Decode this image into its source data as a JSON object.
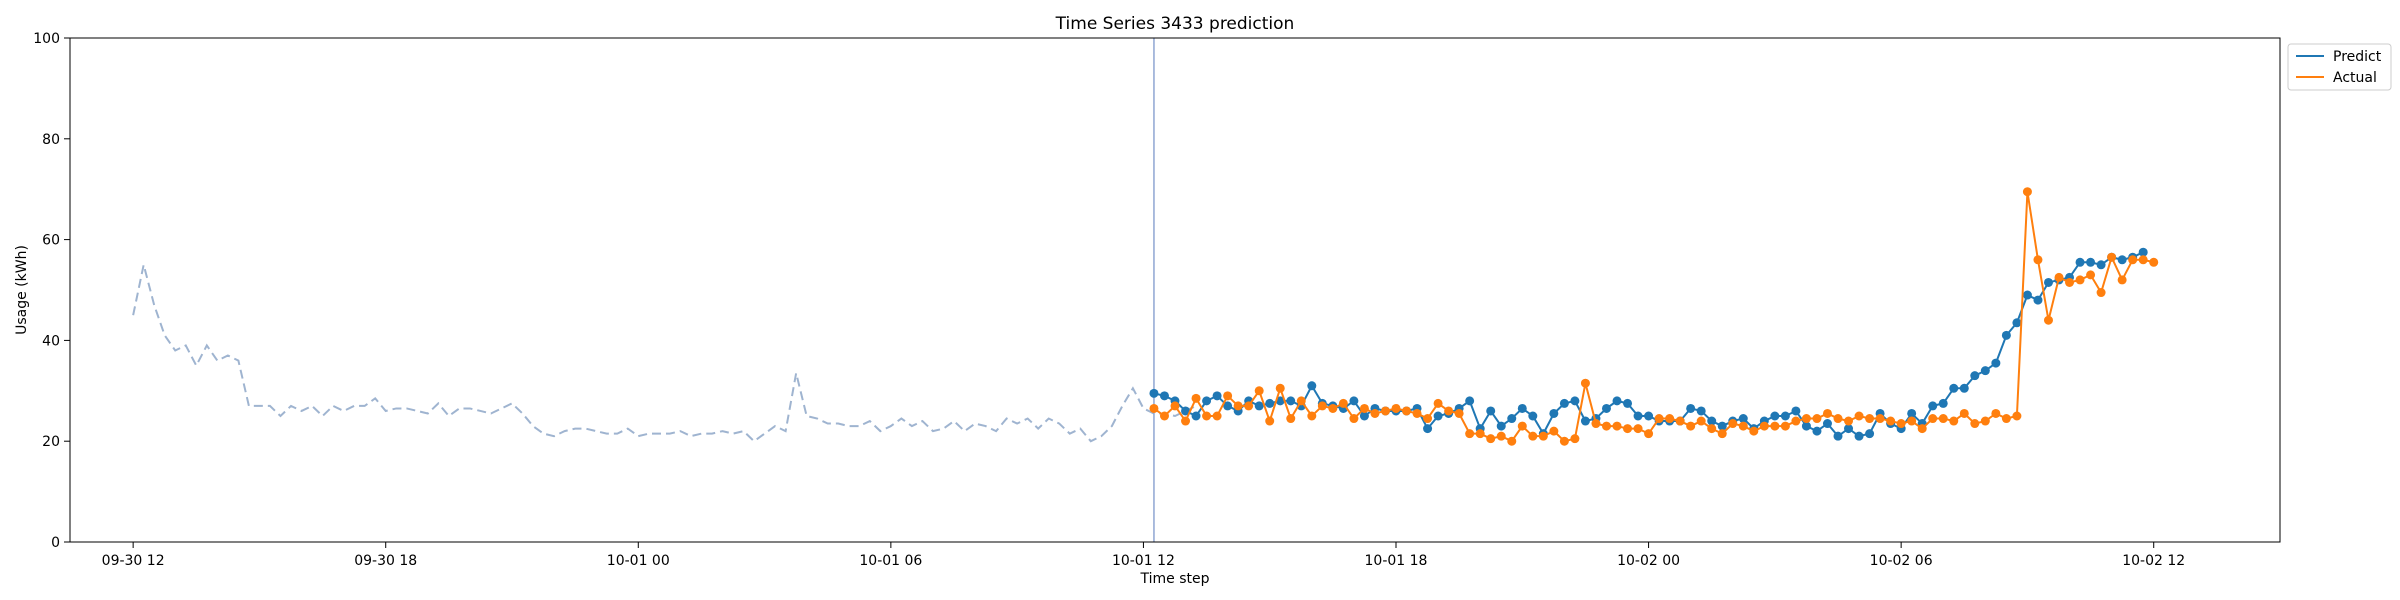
{
  "chart_data": {
    "type": "line",
    "title": "Time Series 3433 prediction",
    "xlabel": "Time step",
    "ylabel": "Usage (kWh)",
    "ylim": [
      0,
      100
    ],
    "yticks": [
      0,
      20,
      40,
      60,
      80,
      100
    ],
    "xlim": [
      "2023-09-30 10:30",
      "2023-10-02 15:00"
    ],
    "xticks": [
      {
        "t": "2023-09-30 12:00",
        "label": "09-30 12"
      },
      {
        "t": "2023-09-30 18:00",
        "label": "09-30 18"
      },
      {
        "t": "2023-10-01 00:00",
        "label": "10-01 00"
      },
      {
        "t": "2023-10-01 06:00",
        "label": "10-01 06"
      },
      {
        "t": "2023-10-01 12:00",
        "label": "10-01 12"
      },
      {
        "t": "2023-10-01 18:00",
        "label": "10-01 18"
      },
      {
        "t": "2023-10-02 00:00",
        "label": "10-02 00"
      },
      {
        "t": "2023-10-02 06:00",
        "label": "10-02 06"
      },
      {
        "t": "2023-10-02 12:00",
        "label": "10-02 12"
      }
    ],
    "grid": false,
    "legend": "top-right",
    "forecast_start": "2023-10-01 12:15",
    "history": {
      "start": "2023-09-30 12:00",
      "step_minutes": 15,
      "style": "dashed",
      "color": "#9fb4d0",
      "values": [
        45,
        55,
        47,
        41,
        38,
        39,
        35,
        39,
        36,
        37,
        36,
        27,
        27,
        27,
        25,
        27,
        26,
        27,
        25,
        27,
        26,
        27,
        27,
        28.5,
        26,
        26.5,
        26.5,
        26,
        25.5,
        27.5,
        25,
        26.5,
        26.5,
        26,
        25.5,
        26.5,
        27.5,
        25.5,
        23,
        21.5,
        21,
        22,
        22.5,
        22.5,
        22,
        21.5,
        21.5,
        22.5,
        21,
        21.5,
        21.5,
        21.5,
        22,
        21,
        21.5,
        21.5,
        22,
        21.5,
        22,
        20,
        21.5,
        23,
        22,
        33.5,
        25,
        24.5,
        23.5,
        23.5,
        23,
        23,
        24,
        22,
        23,
        24.5,
        23,
        24,
        22,
        22.5,
        24,
        22,
        23.5,
        23,
        22,
        24.5,
        23.5,
        24.5,
        22.5,
        24.5,
        23.5,
        21.5,
        22.5,
        20,
        21,
        23,
        27,
        30.5,
        26.5,
        25.5,
        25.5,
        25,
        26,
        27
      ]
    },
    "series": [
      {
        "name": "Predict",
        "color": "#1f77b4",
        "start": "2023-10-01 12:15",
        "step_minutes": 15,
        "values": [
          29.5,
          29,
          28,
          26,
          25,
          28,
          29,
          27,
          26,
          28,
          27,
          27.5,
          28,
          28,
          27,
          31,
          27.5,
          27,
          26.5,
          28,
          25,
          26.5,
          26,
          26,
          26,
          26.5,
          22.5,
          25,
          25.5,
          26.5,
          28,
          22.5,
          26,
          23,
          24.5,
          26.5,
          25,
          21.5,
          25.5,
          27.5,
          28,
          24,
          24.5,
          26.5,
          28,
          27.5,
          25,
          25,
          24,
          24,
          24,
          26.5,
          26,
          24,
          23,
          24,
          24.5,
          22.5,
          24,
          25,
          25,
          26,
          23,
          22,
          23.5,
          21,
          22.5,
          21,
          21.5,
          25.5,
          23.5,
          22.5,
          25.5,
          23.5,
          27,
          27.5,
          30.5,
          30.5,
          33,
          34,
          35.5,
          41,
          43.5,
          49,
          48,
          51.5,
          52,
          52.5,
          55.5,
          55.5,
          55,
          56.5,
          56,
          56.5,
          57.5
        ]
      },
      {
        "name": "Actual",
        "color": "#ff7f0e",
        "start": "2023-10-01 12:15",
        "step_minutes": 15,
        "values": [
          26.5,
          25,
          27,
          24,
          28.5,
          25,
          25,
          29,
          27,
          27,
          30,
          24,
          30.5,
          24.5,
          28,
          25,
          27,
          26.5,
          27.5,
          24.5,
          26.5,
          25.5,
          26,
          26.5,
          26,
          25.5,
          24.5,
          27.5,
          26,
          25.5,
          21.5,
          21.5,
          20.5,
          21,
          20,
          23,
          21,
          21,
          22,
          20,
          20.5,
          31.5,
          23.5,
          23,
          23,
          22.5,
          22.5,
          21.5,
          24.5,
          24.5,
          24,
          23,
          24,
          22.5,
          21.5,
          23.5,
          23,
          22,
          23,
          23,
          23,
          24,
          24.5,
          24.5,
          25.5,
          24.5,
          24,
          25,
          24.5,
          24.5,
          24,
          23.5,
          24,
          22.5,
          24.5,
          24.5,
          24,
          25.5,
          23.5,
          24,
          25.5,
          24.5,
          25,
          69.5,
          56,
          44,
          52.5,
          51.5,
          52,
          53,
          49.5,
          56.5,
          52,
          56,
          56,
          55.5
        ]
      }
    ]
  }
}
